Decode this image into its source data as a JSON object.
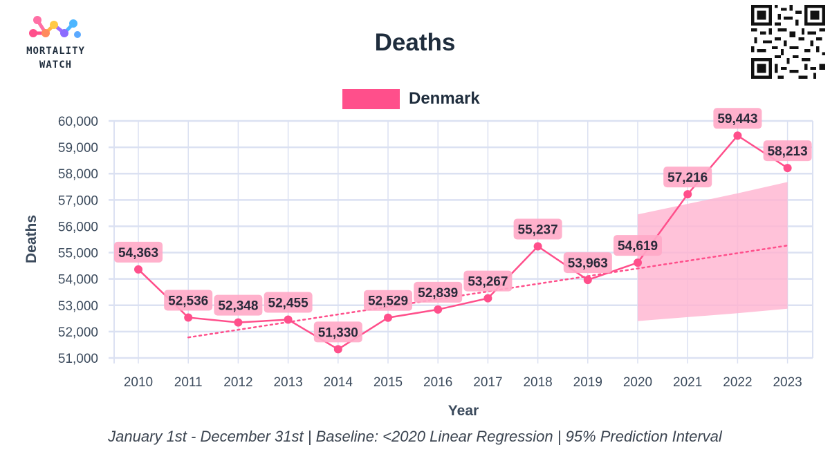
{
  "brand": {
    "line1": "MORTALITY",
    "line2": "WATCH"
  },
  "colors": {
    "series": "#ff4f8b",
    "band": "#ffb3cf",
    "label_bg": "#ffa9c6",
    "grid": "#dbe1f2",
    "text": "#1f2d3d"
  },
  "caption": "January 1st - December 31st | Baseline: <2020 Linear Regression | 95% Prediction Interval",
  "chart_data": {
    "type": "line",
    "title": "Deaths",
    "xlabel": "Year",
    "ylabel": "Deaths",
    "ylim": [
      51000,
      60000
    ],
    "yticks": [
      "51,000",
      "52,000",
      "53,000",
      "54,000",
      "55,000",
      "56,000",
      "57,000",
      "58,000",
      "59,000",
      "60,000"
    ],
    "legend": [
      "Denmark"
    ],
    "legend_position": "top-center",
    "categories": [
      "2010",
      "2011",
      "2012",
      "2013",
      "2014",
      "2015",
      "2016",
      "2017",
      "2018",
      "2019",
      "2020",
      "2021",
      "2022",
      "2023"
    ],
    "series": [
      {
        "name": "Denmark",
        "values": [
          54363,
          52536,
          52348,
          52455,
          51330,
          52529,
          52839,
          53267,
          55237,
          53963,
          54619,
          57216,
          59443,
          58213
        ],
        "labels": [
          "54,363",
          "52,536",
          "52,348",
          "52,455",
          "51,330",
          "52,529",
          "52,839",
          "53,267",
          "55,237",
          "53,963",
          "54,619",
          "57,216",
          "59,443",
          "58,213"
        ]
      }
    ],
    "baseline": {
      "name": "Linear Regression Baseline",
      "start_year": "2011",
      "end_year": "2023",
      "start_value": 51780,
      "end_value": 55270
    },
    "prediction_interval": {
      "start_year": "2020",
      "end_year": "2023",
      "lower": [
        52400,
        52550,
        52700,
        52870
      ],
      "upper": [
        56450,
        56850,
        57250,
        57680
      ]
    }
  }
}
